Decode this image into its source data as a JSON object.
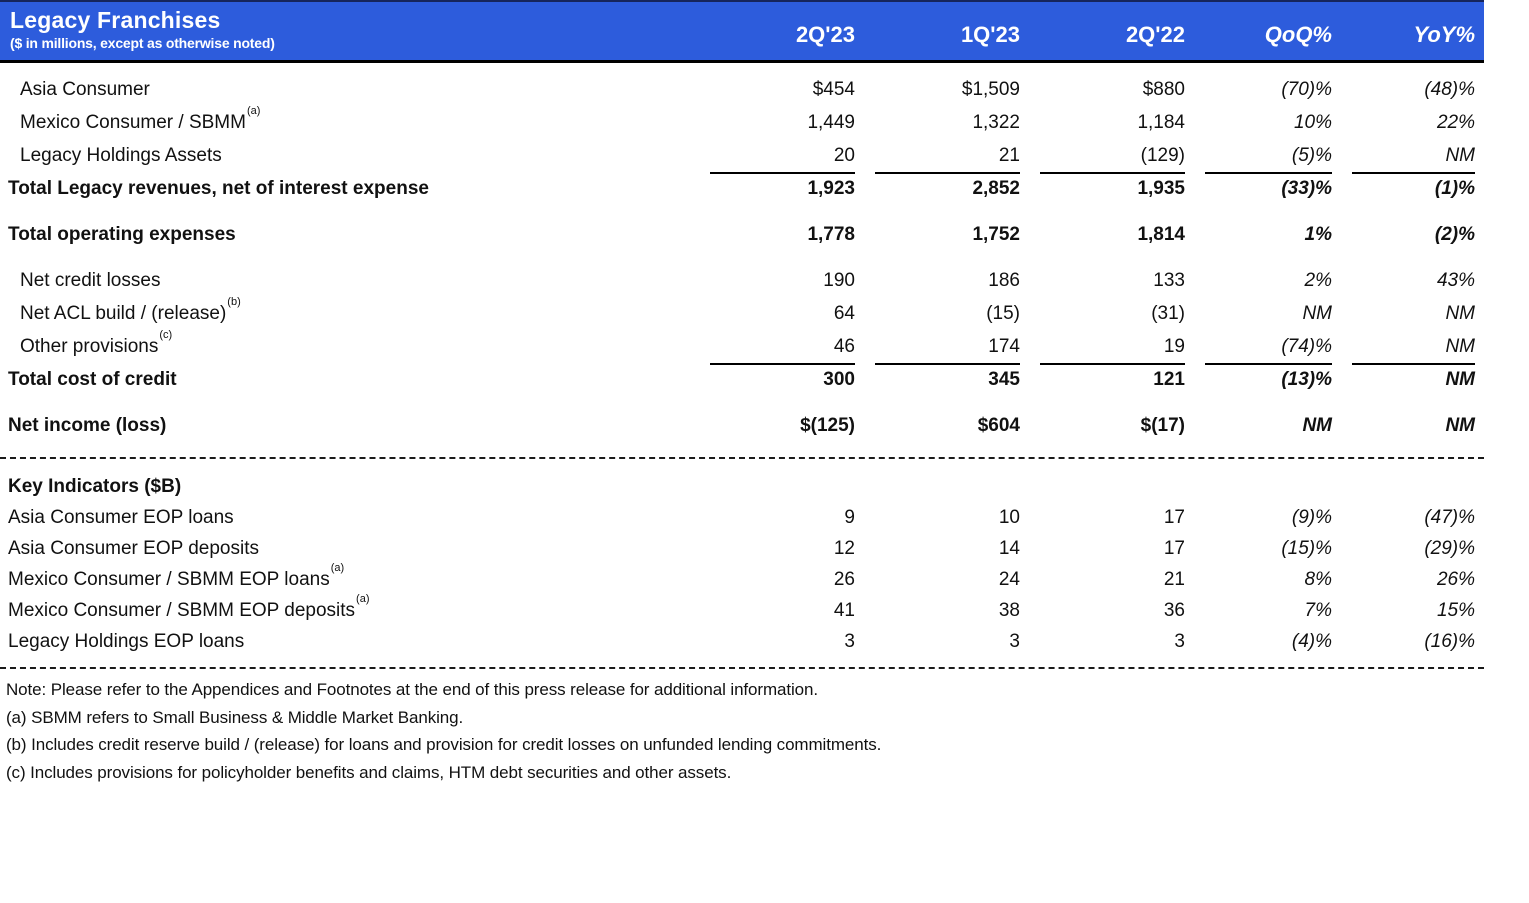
{
  "colors": {
    "header_bg": "#2d5cdc",
    "header_text": "#ffffff",
    "text": "#111111",
    "rule": "#000000"
  },
  "header": {
    "title": "Legacy Franchises",
    "subtitle": "($ in millions, except as otherwise noted)"
  },
  "table": {
    "column_keys": [
      "2q23",
      "1q23",
      "2q22",
      "qoq",
      "yoy"
    ],
    "columns": [
      "2Q'23",
      "1Q'23",
      "2Q'22",
      "QoQ%",
      "YoY%"
    ],
    "rows": [
      {
        "label": "Asia Consumer",
        "indent": true,
        "values": [
          "$454",
          "$1,509",
          "$880",
          "(70)%",
          "(48)%"
        ]
      },
      {
        "label": "Mexico Consumer / SBMM",
        "sup": "(a)",
        "indent": true,
        "values": [
          "1,449",
          "1,322",
          "1,184",
          "10%",
          "22%"
        ]
      },
      {
        "label": "Legacy Holdings Assets",
        "indent": true,
        "underline": true,
        "values": [
          "20",
          "21",
          "(129)",
          "(5)%",
          "NM"
        ]
      },
      {
        "label": "Total Legacy revenues, net of interest expense",
        "total": true,
        "values": [
          "1,923",
          "2,852",
          "1,935",
          "(33)%",
          "(1)%"
        ]
      },
      {
        "label": "Total operating expenses",
        "total": true,
        "gap_before": true,
        "values": [
          "1,778",
          "1,752",
          "1,814",
          "1%",
          "(2)%"
        ]
      },
      {
        "label": "Net credit losses",
        "indent": true,
        "gap_before": true,
        "values": [
          "190",
          "186",
          "133",
          "2%",
          "43%"
        ]
      },
      {
        "label": "Net ACL build / (release)",
        "sup": "(b)",
        "indent": true,
        "values": [
          "64",
          "(15)",
          "(31)",
          "NM",
          "NM"
        ]
      },
      {
        "label": "Other provisions",
        "sup": "(c)",
        "indent": true,
        "underline": true,
        "values": [
          "46",
          "174",
          "19",
          "(74)%",
          "NM"
        ]
      },
      {
        "label": "Total cost of credit",
        "total": true,
        "values": [
          "300",
          "345",
          "121",
          "(13)%",
          "NM"
        ]
      },
      {
        "label": "Net income (loss)",
        "total": true,
        "gap_before": true,
        "values": [
          "$(125)",
          "$604",
          "$(17)",
          "NM",
          "NM"
        ]
      }
    ]
  },
  "key_indicators": {
    "title": "Key Indicators ($B)",
    "rows": [
      {
        "label": "Asia Consumer EOP loans",
        "values": [
          "9",
          "10",
          "17",
          "(9)%",
          "(47)%"
        ]
      },
      {
        "label": "Asia Consumer EOP deposits",
        "values": [
          "12",
          "14",
          "17",
          "(15)%",
          "(29)%"
        ]
      },
      {
        "label": "Mexico Consumer / SBMM EOP loans",
        "sup": "(a)",
        "values": [
          "26",
          "24",
          "21",
          "8%",
          "26%"
        ]
      },
      {
        "label": "Mexico Consumer / SBMM EOP deposits",
        "sup": "(a)",
        "values": [
          "41",
          "38",
          "36",
          "7%",
          "15%"
        ]
      },
      {
        "label": "Legacy Holdings EOP loans",
        "values": [
          "3",
          "3",
          "3",
          "(4)%",
          "(16)%"
        ]
      }
    ]
  },
  "footnotes": [
    "Note: Please refer to the Appendices and Footnotes at the end of this press release for additional information.",
    "(a) SBMM refers to Small Business & Middle Market Banking.",
    "(b) Includes credit reserve build / (release) for loans and provision for credit losses on unfunded lending commitments.",
    "(c) Includes provisions for policyholder benefits and claims, HTM debt securities and other assets."
  ]
}
